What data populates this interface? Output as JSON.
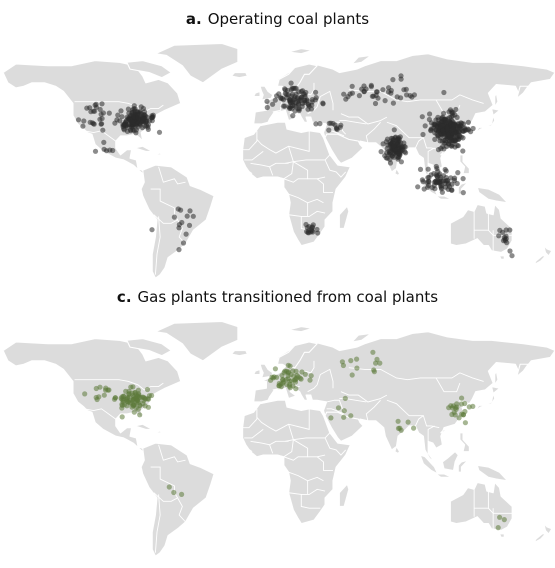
{
  "panels": [
    {
      "letter": "a.",
      "title": "Operating coal plants",
      "dot_color": "#2b2b2b",
      "dot_opacity": 0.55,
      "clusters": [
        {
          "region": "eastern-usa",
          "lon": -85,
          "lat": 38,
          "spread_lon": 9,
          "spread_lat": 6,
          "count": 150
        },
        {
          "region": "western-usa",
          "lon": -110,
          "lat": 40,
          "spread_lon": 8,
          "spread_lat": 6,
          "count": 25
        },
        {
          "region": "mexico",
          "lon": -102,
          "lat": 22,
          "spread_lon": 5,
          "spread_lat": 3,
          "count": 6
        },
        {
          "region": "europe",
          "lon": 15,
          "lat": 50,
          "spread_lon": 12,
          "spread_lat": 6,
          "count": 90
        },
        {
          "region": "russia-kazakhstan",
          "lon": 70,
          "lat": 55,
          "spread_lon": 25,
          "spread_lat": 5,
          "count": 40
        },
        {
          "region": "india",
          "lon": 79,
          "lat": 22,
          "spread_lon": 5,
          "spread_lat": 6,
          "count": 110
        },
        {
          "region": "china",
          "lon": 113,
          "lat": 32,
          "spread_lon": 9,
          "spread_lat": 8,
          "count": 260
        },
        {
          "region": "southeast-asia",
          "lon": 108,
          "lat": 3,
          "spread_lon": 10,
          "spread_lat": 7,
          "count": 70
        },
        {
          "region": "south-africa",
          "lon": 27,
          "lat": -26,
          "spread_lon": 3,
          "spread_lat": 3,
          "count": 16
        },
        {
          "region": "south-america",
          "lon": -55,
          "lat": -22,
          "spread_lon": 10,
          "spread_lat": 12,
          "count": 14
        },
        {
          "region": "australia",
          "lon": 148,
          "lat": -30,
          "spread_lon": 4,
          "spread_lat": 6,
          "count": 14
        },
        {
          "region": "turkey-middle-east",
          "lon": 40,
          "lat": 35,
          "spread_lon": 8,
          "spread_lat": 4,
          "count": 12
        }
      ]
    },
    {
      "letter": "c.",
      "title": "Gas plants transitioned from coal plants",
      "dot_color": "#5c7a3a",
      "dot_opacity": 0.55,
      "clusters": [
        {
          "region": "eastern-usa",
          "lon": -86,
          "lat": 37,
          "spread_lon": 8,
          "spread_lat": 5,
          "count": 80
        },
        {
          "region": "western-usa",
          "lon": -108,
          "lat": 40,
          "spread_lon": 8,
          "spread_lat": 6,
          "count": 12
        },
        {
          "region": "europe",
          "lon": 12,
          "lat": 50,
          "spread_lon": 10,
          "spread_lat": 5,
          "count": 50
        },
        {
          "region": "russia",
          "lon": 60,
          "lat": 55,
          "spread_lon": 20,
          "spread_lat": 5,
          "count": 12
        },
        {
          "region": "china",
          "lon": 118,
          "lat": 32,
          "spread_lon": 6,
          "spread_lat": 7,
          "count": 22
        },
        {
          "region": "middle-east",
          "lon": 48,
          "lat": 30,
          "spread_lon": 8,
          "spread_lat": 5,
          "count": 6
        },
        {
          "region": "south-asia",
          "lon": 88,
          "lat": 22,
          "spread_lon": 10,
          "spread_lat": 6,
          "count": 6
        },
        {
          "region": "australia",
          "lon": 146,
          "lat": -32,
          "spread_lon": 4,
          "spread_lat": 5,
          "count": 3
        },
        {
          "region": "south-america",
          "lon": -60,
          "lat": -20,
          "spread_lon": 8,
          "spread_lat": 8,
          "count": 3
        }
      ]
    }
  ]
}
